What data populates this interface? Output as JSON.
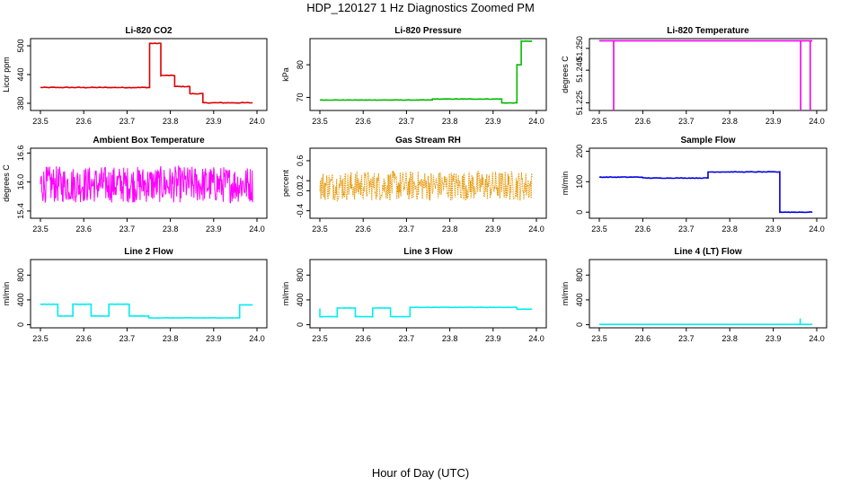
{
  "page": {
    "title": "HDP_120127  1 Hz Diagnostics Zoomed PM",
    "xlabel": "Hour of Day (UTC)"
  },
  "chart_data": [
    {
      "type": "line",
      "title": "Li-820 CO2",
      "ylabel": "Licor ppm",
      "color": "#dd0000",
      "xlim": [
        23.5,
        24.0
      ],
      "ylim": [
        365,
        515
      ],
      "xticks": [
        "23.5",
        "23.6",
        "23.7",
        "23.8",
        "23.9",
        "24.0"
      ],
      "yticks": [
        {
          "v": 380,
          "t": "380"
        },
        {
          "v": 440,
          "t": "440"
        },
        {
          "v": 500,
          "t": "500"
        }
      ],
      "series": [
        {
          "name": "CO2",
          "noise": 1.2,
          "segments": [
            [
              23.5,
              23.752,
              413
            ],
            [
              23.752,
              23.778,
              505
            ],
            [
              23.778,
              23.81,
              438
            ],
            [
              23.81,
              23.845,
              415
            ],
            [
              23.845,
              23.875,
              400
            ],
            [
              23.875,
              23.99,
              381
            ]
          ]
        }
      ]
    },
    {
      "type": "line",
      "title": "Li-820 Pressure",
      "ylabel": "kPa",
      "color": "#00bb00",
      "xlim": [
        23.5,
        24.0
      ],
      "ylim": [
        66,
        88
      ],
      "xticks": [
        "23.5",
        "23.6",
        "23.7",
        "23.8",
        "23.9",
        "24.0"
      ],
      "yticks": [
        {
          "v": 70,
          "t": "70"
        },
        {
          "v": 80,
          "t": "80"
        }
      ],
      "series": [
        {
          "name": "Pressure",
          "noise": 0.1,
          "segments": [
            [
              23.5,
              23.76,
              69.2
            ],
            [
              23.76,
              23.92,
              69.5
            ],
            [
              23.92,
              23.955,
              68.3
            ],
            [
              23.955,
              23.965,
              80
            ],
            [
              23.965,
              23.99,
              87.2
            ]
          ]
        }
      ]
    },
    {
      "type": "line",
      "title": "Li-820 Temperature",
      "ylabel": "degrees C",
      "color": "#ee00ee",
      "xlim": [
        23.5,
        24.0
      ],
      "ylim": [
        51.2215,
        51.2545
      ],
      "xticks": [
        "23.5",
        "23.6",
        "23.7",
        "23.8",
        "23.9",
        "24.0"
      ],
      "yticks": [
        {
          "v": 51.225,
          "t": "51.225"
        },
        {
          "v": 51.24,
          "t": "51.240"
        },
        {
          "v": 51.25,
          "t": "51.250"
        }
      ],
      "series": [
        {
          "name": "Temperature",
          "noise": 0,
          "segments": [
            [
              23.5,
              23.99,
              51.2535
            ]
          ],
          "spikes": [
            [
              23.533,
              51.2215
            ],
            [
              23.963,
              51.2215
            ],
            [
              23.985,
              51.2215
            ]
          ]
        }
      ]
    },
    {
      "type": "line",
      "title": "Ambient Box Temperature",
      "ylabel": "degrees C",
      "color": "#ff00ff",
      "xlim": [
        23.5,
        24.0
      ],
      "ylim": [
        15.25,
        16.7
      ],
      "xticks": [
        "23.5",
        "23.6",
        "23.7",
        "23.8",
        "23.9",
        "24.0"
      ],
      "yticks": [
        {
          "v": 15.4,
          "t": "15.4"
        },
        {
          "v": 16.0,
          "t": "16.0"
        },
        {
          "v": 16.6,
          "t": "16.6"
        }
      ],
      "series": [
        {
          "name": "Ambient",
          "noise": 0.38,
          "noisy": true,
          "segments": [
            [
              23.5,
              23.99,
              15.95
            ]
          ]
        }
      ]
    },
    {
      "type": "line",
      "title": "Gas Stream RH",
      "ylabel": "percent",
      "color": "#e69500",
      "xlim": [
        23.5,
        24.0
      ],
      "ylim": [
        -0.55,
        0.85
      ],
      "xticks": [
        "23.5",
        "23.6",
        "23.7",
        "23.8",
        "23.9",
        "24.0"
      ],
      "yticks": [
        {
          "v": -0.4,
          "t": "-0.4"
        },
        {
          "v": 0.0,
          "t": "0.0"
        },
        {
          "v": 0.2,
          "t": "0.2"
        },
        {
          "v": 0.6,
          "t": "0.6"
        }
      ],
      "series": [
        {
          "name": "RH",
          "noise": 0.3,
          "noisy": true,
          "dotted": true,
          "segments": [
            [
              23.5,
              23.99,
              0.1
            ]
          ]
        }
      ]
    },
    {
      "type": "line",
      "title": "Sample Flow",
      "ylabel": "ml/min",
      "color": "#0000dd",
      "xlim": [
        23.5,
        24.0
      ],
      "ylim": [
        -20,
        210
      ],
      "xticks": [
        "23.5",
        "23.6",
        "23.7",
        "23.8",
        "23.9",
        "24.0"
      ],
      "yticks": [
        {
          "v": 0,
          "t": "0"
        },
        {
          "v": 100,
          "t": "100"
        },
        {
          "v": 200,
          "t": "200"
        }
      ],
      "series": [
        {
          "name": "Sample",
          "noise": 1.5,
          "segments": [
            [
              23.5,
              23.6,
              115
            ],
            [
              23.6,
              23.75,
              112
            ],
            [
              23.75,
              23.915,
              132
            ],
            [
              23.915,
              23.99,
              0
            ]
          ]
        }
      ]
    },
    {
      "type": "line",
      "title": "Line 2 Flow",
      "ylabel": "ml/min",
      "color": "#00eeee",
      "xlim": [
        23.5,
        24.0
      ],
      "ylim": [
        -50,
        1050
      ],
      "xticks": [
        "23.5",
        "23.6",
        "23.7",
        "23.8",
        "23.9",
        "24.0"
      ],
      "yticks": [
        {
          "v": 0,
          "t": "0"
        },
        {
          "v": 400,
          "t": "400"
        },
        {
          "v": 800,
          "t": "800"
        }
      ],
      "series": [
        {
          "name": "Line 2",
          "noise": 4,
          "segments": [
            [
              23.5,
              23.54,
              330
            ],
            [
              23.54,
              23.575,
              140
            ],
            [
              23.575,
              23.617,
              330
            ],
            [
              23.617,
              23.658,
              140
            ],
            [
              23.658,
              23.705,
              330
            ],
            [
              23.705,
              23.75,
              140
            ],
            [
              23.75,
              23.96,
              110
            ],
            [
              23.96,
              23.99,
              320
            ]
          ]
        }
      ]
    },
    {
      "type": "line",
      "title": "Line 3 Flow",
      "ylabel": "ml/min",
      "color": "#00eeee",
      "xlim": [
        23.5,
        24.0
      ],
      "ylim": [
        -50,
        1050
      ],
      "xticks": [
        "23.5",
        "23.6",
        "23.7",
        "23.8",
        "23.9",
        "24.0"
      ],
      "yticks": [
        {
          "v": 0,
          "t": "0"
        },
        {
          "v": 400,
          "t": "400"
        },
        {
          "v": 800,
          "t": "800"
        }
      ],
      "series": [
        {
          "name": "Line 3",
          "noise": 4,
          "segments": [
            [
              23.5,
              23.5,
              260
            ],
            [
              23.5,
              23.54,
              130
            ],
            [
              23.54,
              23.582,
              270
            ],
            [
              23.582,
              23.622,
              130
            ],
            [
              23.622,
              23.663,
              270
            ],
            [
              23.663,
              23.708,
              130
            ],
            [
              23.708,
              23.955,
              280
            ],
            [
              23.955,
              23.99,
              250
            ]
          ]
        }
      ]
    },
    {
      "type": "line",
      "title": "Line 4 (LT) Flow",
      "ylabel": "ml/min",
      "color": "#00eeee",
      "xlim": [
        23.5,
        24.0
      ],
      "ylim": [
        -50,
        1050
      ],
      "xticks": [
        "23.5",
        "23.6",
        "23.7",
        "23.8",
        "23.9",
        "24.0"
      ],
      "yticks": [
        {
          "v": 0,
          "t": "0"
        },
        {
          "v": 400,
          "t": "400"
        },
        {
          "v": 800,
          "t": "800"
        }
      ],
      "series": [
        {
          "name": "Line 4",
          "noise": 1,
          "segments": [
            [
              23.5,
              23.99,
              5
            ]
          ],
          "spikes": [
            [
              23.962,
              100
            ]
          ]
        }
      ]
    }
  ]
}
